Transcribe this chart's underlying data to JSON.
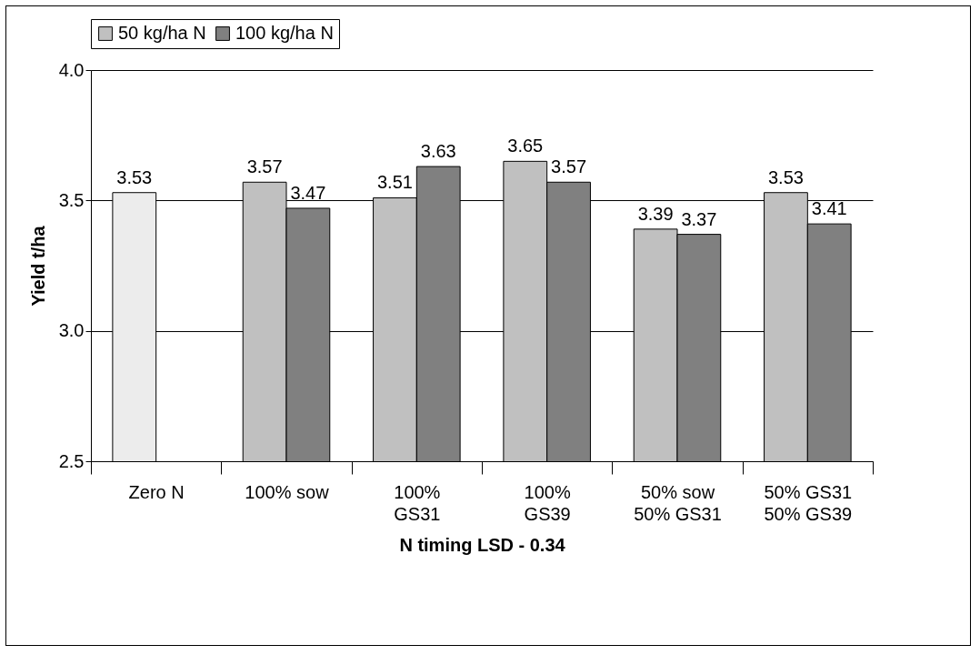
{
  "chart_data": {
    "type": "bar",
    "xlabel": "N timing    LSD - 0.34",
    "ylabel": "Yield t/ha",
    "categories": [
      "Zero N",
      "100% sow",
      "100%\nGS31",
      "100%\nGS39",
      "50% sow\n50% GS31",
      "50% GS31\n50% GS39"
    ],
    "series": [
      {
        "name": "50 kg/ha N",
        "color": "#c0c0c0",
        "colors": [
          "#ececec",
          "#c0c0c0",
          "#c0c0c0",
          "#c0c0c0",
          "#c0c0c0",
          "#c0c0c0"
        ],
        "values": [
          3.53,
          3.57,
          3.51,
          3.65,
          3.39,
          3.53
        ]
      },
      {
        "name": "100 kg/ha N",
        "color": "#808080",
        "values": [
          null,
          3.47,
          3.63,
          3.57,
          3.37,
          3.41
        ]
      }
    ],
    "ylim": [
      2.5,
      4.0
    ],
    "yticks": [
      {
        "value": 2.5,
        "label": "2.5"
      },
      {
        "value": 3,
        "label": "3.0"
      },
      {
        "value": 3.5,
        "label": "3.5"
      },
      {
        "value": 4,
        "label": "4.0"
      }
    ],
    "grid": "y",
    "legend": "top",
    "data_labels": true
  }
}
